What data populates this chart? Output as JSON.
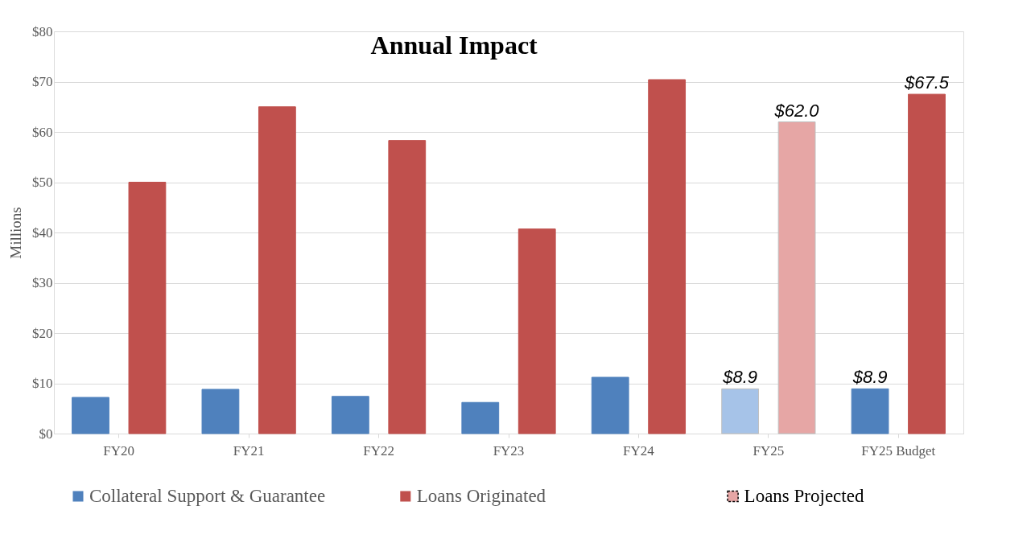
{
  "chart_data": {
    "type": "bar",
    "title": "Annual Impact",
    "ylabel": "Millions",
    "categories": [
      "FY20",
      "FY21",
      "FY22",
      "FY23",
      "FY24",
      "FY25",
      "FY25 Budget"
    ],
    "series": [
      {
        "name": "Collateral Support & Guarantee",
        "color": "#4f81bd",
        "colors": [
          "#4f81bd",
          "#4f81bd",
          "#4f81bd",
          "#4f81bd",
          "#4f81bd",
          "#a6c3e8",
          "#4f81bd"
        ],
        "values": [
          7.2,
          8.8,
          7.4,
          6.2,
          11.2,
          8.9,
          8.9
        ],
        "value_labels": [
          null,
          null,
          null,
          null,
          null,
          "$8.9",
          "$8.9"
        ]
      },
      {
        "name": "Loans Originated",
        "color": "#c0504d",
        "colors": [
          "#c0504d",
          "#c0504d",
          "#c0504d",
          "#c0504d",
          "#c0504d",
          "#e6a6a5",
          "#c0504d"
        ],
        "values": [
          50.0,
          65.0,
          58.3,
          40.7,
          70.4,
          62.0,
          67.5
        ],
        "value_labels": [
          null,
          null,
          null,
          null,
          null,
          "$62.0",
          "$67.5"
        ]
      }
    ],
    "annotations": [
      "Loans Projected"
    ],
    "ylim": [
      0,
      80
    ],
    "yticks": [
      {
        "value": 0,
        "label": "$0"
      },
      {
        "value": 10,
        "label": "$10"
      },
      {
        "value": 20,
        "label": "$20"
      },
      {
        "value": 30,
        "label": "$30"
      },
      {
        "value": 40,
        "label": "$40"
      },
      {
        "value": 50,
        "label": "$50"
      },
      {
        "value": 60,
        "label": "$60"
      },
      {
        "value": 70,
        "label": "$70"
      },
      {
        "value": 80,
        "label": "$80"
      }
    ],
    "grid": "y",
    "legend": "bottom"
  }
}
